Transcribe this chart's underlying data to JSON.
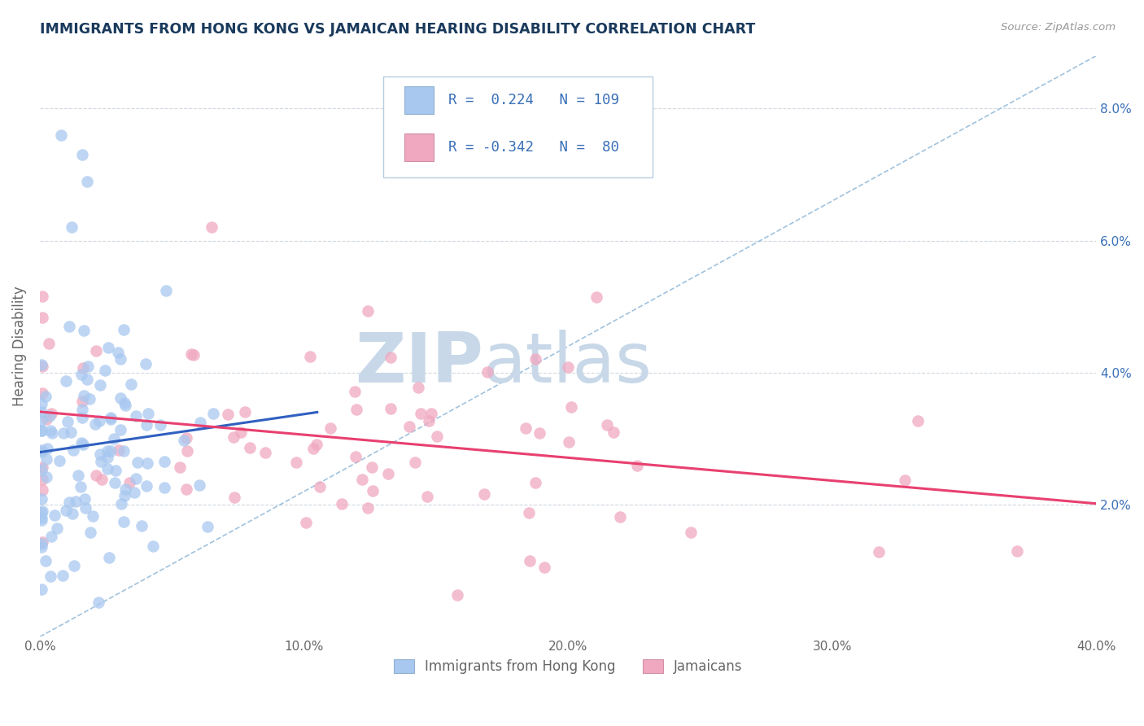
{
  "title": "IMMIGRANTS FROM HONG KONG VS JAMAICAN HEARING DISABILITY CORRELATION CHART",
  "source": "Source: ZipAtlas.com",
  "ylabel": "Hearing Disability",
  "xlim": [
    0.0,
    0.4
  ],
  "ylim": [
    0.0,
    0.088
  ],
  "R_hk": 0.224,
  "N_hk": 109,
  "R_jam": -0.342,
  "N_jam": 80,
  "color_hk": "#a8c8f0",
  "color_jam": "#f0a8c0",
  "trendline_hk_color": "#3060c0",
  "trendline_jam_color": "#e84070",
  "refline_color": "#90b8d8",
  "watermark_color": "#c8d8e8",
  "background_color": "#ffffff",
  "grid_color": "#d0d8e0",
  "title_color": "#1a3a5c",
  "axis_label_color": "#3a70b8",
  "legend_value_color": "#3a70b8",
  "tick_color": "#666666",
  "source_color": "#999999",
  "ylabel_color": "#666666"
}
